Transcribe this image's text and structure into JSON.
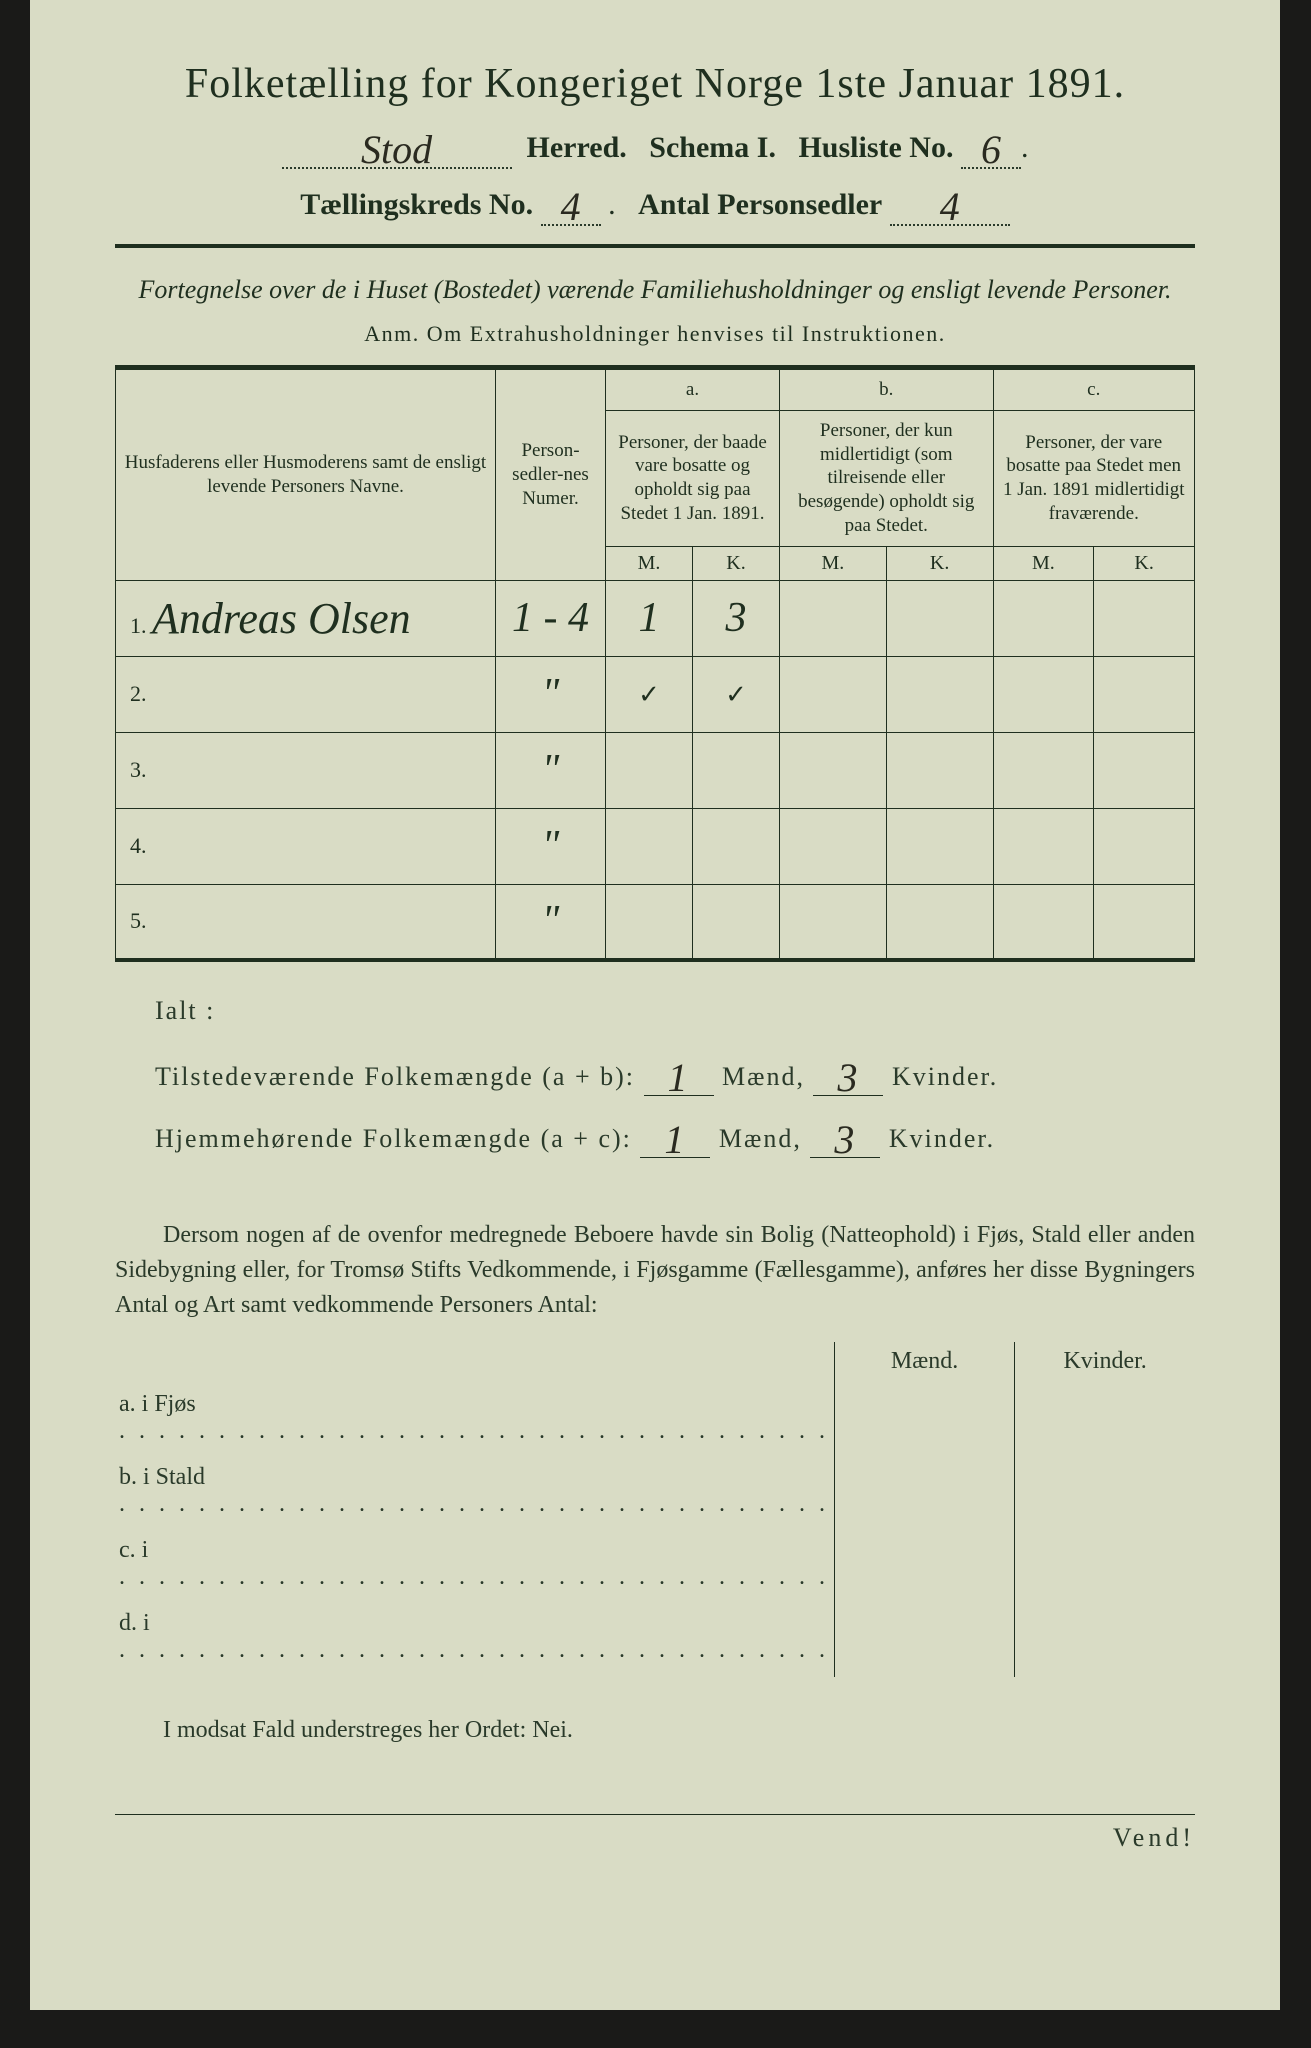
{
  "title": "Folketælling for Kongeriget Norge 1ste Januar 1891.",
  "header": {
    "herred_hw": "Stod",
    "herred_label": "Herred.",
    "schema_label": "Schema I.",
    "husliste_label": "Husliste No.",
    "husliste_hw": "6",
    "kreds_label": "Tællingskreds No.",
    "kreds_hw": "4",
    "sedler_label": "Antal Personsedler",
    "sedler_hw": "4"
  },
  "subtitle": "Fortegnelse over de i Huset (Bostedet) værende Familiehusholdninger og ensligt levende Personer.",
  "anm": "Anm.  Om Extrahusholdninger henvises til Instruktionen.",
  "table": {
    "col1": "Husfaderens eller Husmoderens samt de ensligt levende Personers Navne.",
    "col2": "Person-sedler-nes Numer.",
    "a_label": "a.",
    "a_text": "Personer, der baade vare bosatte og opholdt sig paa Stedet 1 Jan. 1891.",
    "b_label": "b.",
    "b_text": "Personer, der kun midlertidigt (som tilreisende eller besøgende) opholdt sig paa Stedet.",
    "c_label": "c.",
    "c_text": "Personer, der vare bosatte paa Stedet men 1 Jan. 1891 midlertidigt fraværende.",
    "M": "M.",
    "K": "K.",
    "rows": [
      {
        "idx": "1.",
        "name_hw": "Andreas Olsen",
        "num_hw": "1 - 4",
        "aM": "1",
        "aK": "3",
        "bM": "",
        "bK": "",
        "cM": "",
        "cK": ""
      },
      {
        "idx": "2.",
        "name_hw": "",
        "num_hw": "\"",
        "aM": "✓",
        "aK": "✓",
        "bM": "",
        "bK": "",
        "cM": "",
        "cK": ""
      },
      {
        "idx": "3.",
        "name_hw": "",
        "num_hw": "\"",
        "aM": "",
        "aK": "",
        "bM": "",
        "bK": "",
        "cM": "",
        "cK": ""
      },
      {
        "idx": "4.",
        "name_hw": "",
        "num_hw": "\"",
        "aM": "",
        "aK": "",
        "bM": "",
        "bK": "",
        "cM": "",
        "cK": ""
      },
      {
        "idx": "5.",
        "name_hw": "",
        "num_hw": "\"",
        "aM": "",
        "aK": "",
        "bM": "",
        "bK": "",
        "cM": "",
        "cK": ""
      }
    ]
  },
  "ialt": "Ialt :",
  "sums": {
    "line1_label": "Tilstedeværende Folkemængde (a + b):",
    "line2_label": "Hjemmehørende Folkemængde (a + c):",
    "maend": "Mænd,",
    "kvinder": "Kvinder.",
    "l1_m": "1",
    "l1_k": "3",
    "l2_m": "1",
    "l2_k": "3"
  },
  "para": "Dersom nogen af de ovenfor medregnede Beboere havde sin Bolig (Natteophold) i Fjøs, Stald eller anden Sidebygning eller, for Tromsø Stifts Vedkommende, i Fjøsgamme (Fællesgamme), anføres her disse Bygningers Antal og Art samt vedkommende Personers Antal:",
  "outbuildings": {
    "maend": "Mænd.",
    "kvinder": "Kvinder.",
    "rows": [
      {
        "lead": "a.  i      Fjøs "
      },
      {
        "lead": "b.  i      Stald "
      },
      {
        "lead": "c.  i "
      },
      {
        "lead": "d.  i "
      }
    ]
  },
  "nei": "I modsat Fald understreges her Ordet: Nei.",
  "vend": "Vend!",
  "colors": {
    "paper": "#d9dcc5",
    "ink": "#1f2f1f",
    "handwriting": "#2a2a20",
    "background": "#1a1a18"
  }
}
